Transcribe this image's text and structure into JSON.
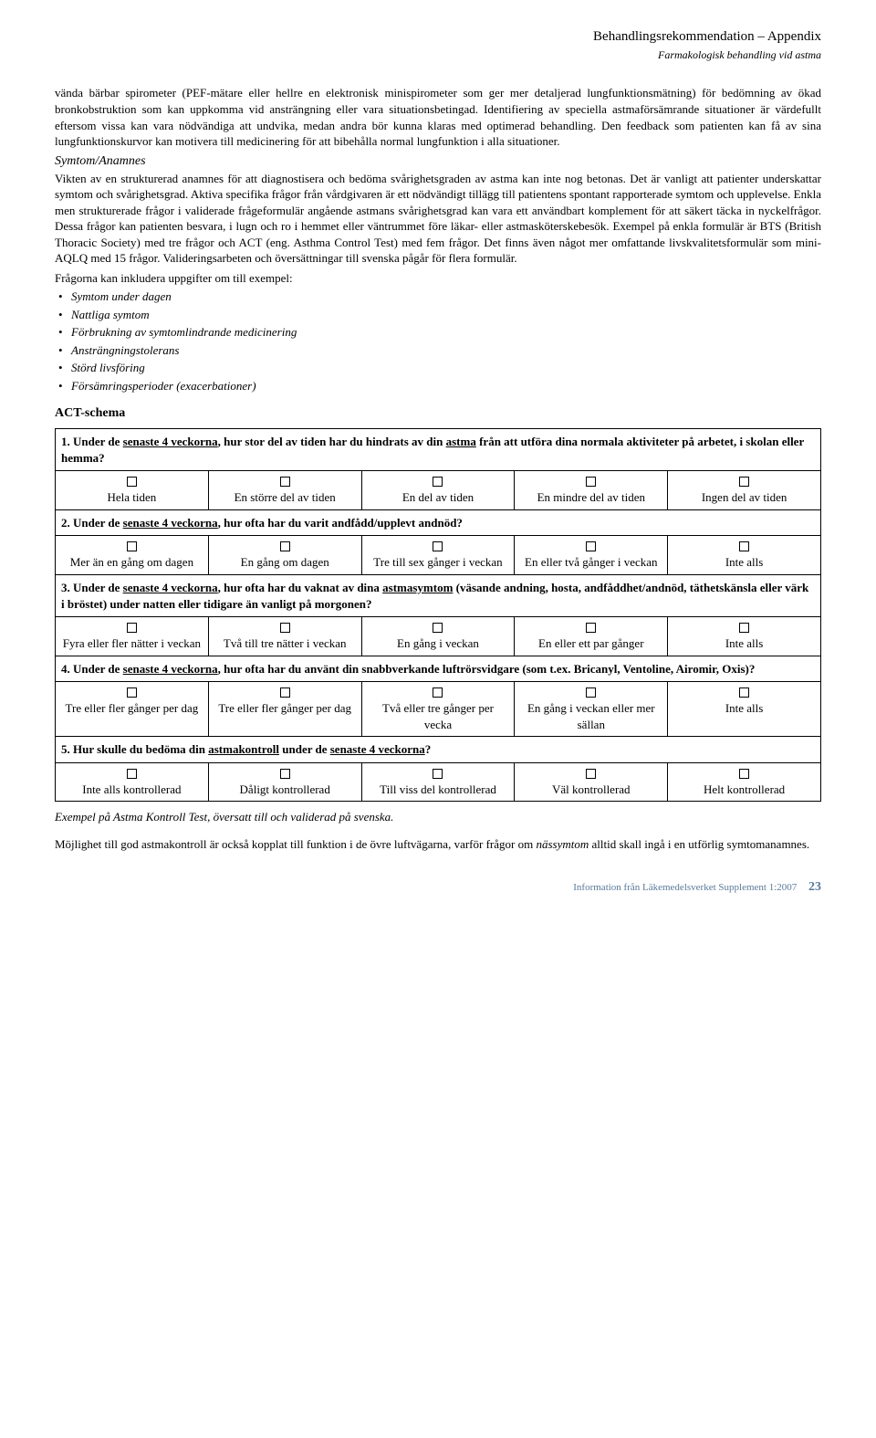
{
  "header": {
    "title": "Behandlingsrekommendation – Appendix",
    "subtitle": "Farmakologisk behandling vid astma"
  },
  "para1": "vända bärbar spirometer (PEF-mätare eller hellre en elektronisk minispirometer som ger mer detaljerad lungfunktionsmätning) för bedömning av ökad bronkobstruktion som kan uppkomma vid ansträngning eller vara situationsbetingad. Identifiering av speciella astmaförsämrande situationer är värdefullt eftersom vissa kan vara nödvändiga att undvika, medan andra bör kunna klaras med optimerad behandling. Den feedback som patienten kan få av sina lungfunktionskurvor kan motivera till medicinering för att bibehålla normal lungfunktion i alla situationer.",
  "symtom_heading": "Symtom/Anamnes",
  "para2": "Vikten av en strukturerad anamnes för att diagnostisera och bedöma svårighetsgraden av astma kan inte nog betonas. Det är vanligt att patienter underskattar symtom och svårighetsgrad. Aktiva specifika frågor från vårdgivaren är ett nödvändigt tillägg till patientens spontant rapporterade symtom och upplevelse. Enkla men strukturerade frågor i validerade frågeformulär angående astmans svårighetsgrad kan vara ett användbart komplement för att säkert täcka in nyckelfrågor. Dessa frågor kan patienten besvara, i lugn och ro i hemmet eller väntrummet före läkar- eller astmasköterskebesök. Exempel på enkla formulär är BTS (British Thoracic Society) med tre frågor och ACT (eng. Asthma Control Test) med fem frågor. Det finns även något mer omfattande livskvalitetsformulär som mini-AQLQ med 15 frågor. Valideringsarbeten och översättningar till svenska pågår för flera formulär.",
  "bullet_intro": "Frågorna kan inkludera uppgifter om till exempel:",
  "bullets": [
    "Symtom under dagen",
    "Nattliga symtom",
    "Förbrukning av symtomlindrande medicinering",
    "Ansträngningstolerans",
    "Störd livsföring",
    "Försämringsperioder (exacerbationer)"
  ],
  "act_heading": "ACT-schema",
  "q1": {
    "prefix": "1. Under de ",
    "u1": "senaste 4 veckorna",
    "mid": ", hur stor del av tiden har du hindrats av din ",
    "u2": "astma",
    "suffix": " från att utföra dina normala aktiviteter på arbetet, i skolan eller hemma?",
    "opts": [
      "Hela tiden",
      "En större del av tiden",
      "En del av tiden",
      "En mindre del av tiden",
      "Ingen del av tiden"
    ]
  },
  "q2": {
    "prefix": "2. Under de ",
    "u1": "senaste 4 veckorna",
    "suffix": ", hur ofta har du varit andfådd/upplevt andnöd?",
    "opts": [
      "Mer än en gång om dagen",
      "En gång om dagen",
      "Tre till sex gånger i veckan",
      "En eller två gånger i veckan",
      "Inte alls"
    ]
  },
  "q3": {
    "prefix": "3. Under de ",
    "u1": "senaste 4 veckorna",
    "mid": ", hur ofta har du vaknat av dina ",
    "u2": "astmasymtom",
    "suffix": " (väsande andning, hosta, andfåddhet/andnöd, täthetskänsla eller värk i bröstet) under natten eller tidigare än vanligt på morgonen?",
    "opts": [
      "Fyra eller fler nätter i veckan",
      "Två till tre nätter i veckan",
      "En gång i veckan",
      "En eller ett par gånger",
      "Inte alls"
    ]
  },
  "q4": {
    "prefix": "4. Under de ",
    "u1": "senaste 4 veckorna",
    "suffix": ", hur ofta har du använt din snabbverkande luftrörsvidgare (som t.ex. Bricanyl, Ventoline, Airomir, Oxis)?",
    "opts": [
      "Tre eller fler gånger per dag",
      "Tre eller fler gånger per dag",
      "Två eller tre gånger per vecka",
      "En gång i veckan eller mer sällan",
      "Inte alls"
    ]
  },
  "q5": {
    "prefix": "5. Hur skulle du bedöma din ",
    "u1": "astmakontroll",
    "mid": " under de ",
    "u2": "senaste 4 veckorna",
    "suffix": "?",
    "opts": [
      "Inte alls kontrollerad",
      "Dåligt kontrollerad",
      "Till viss del kontrollerad",
      "Väl kontrollerad",
      "Helt kontrollerad"
    ]
  },
  "caption": "Exempel på Astma Kontroll Test, översatt till och validerad på svenska.",
  "closing_pre": "Möjlighet till god astmakontroll är också kopplat till funktion i de övre luftvägarna, varför frågor om ",
  "closing_em": "nässymtom",
  "closing_post": " alltid skall ingå i en utförlig symtomanamnes.",
  "footer_text": "Information från Läkemedelsverket Supplement 1:2007",
  "footer_page": "23"
}
